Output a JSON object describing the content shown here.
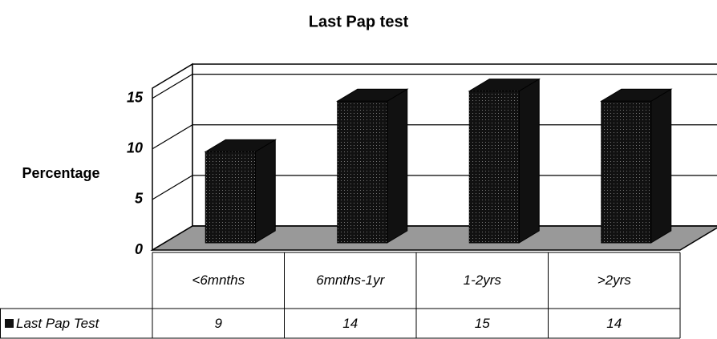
{
  "chart_data": {
    "type": "bar",
    "title": "Last Pap test",
    "y_label": "Percentage",
    "categories": [
      "<6mnths",
      "6mnths-1yr",
      "1-2yrs",
      ">2yrs"
    ],
    "series": [
      {
        "name": "Last Pap Test",
        "color": "#111111",
        "values": [
          9,
          14,
          15,
          14
        ]
      }
    ],
    "ylim": [
      0,
      16
    ],
    "yticks": [
      0,
      5,
      10,
      15
    ],
    "grid": true
  }
}
